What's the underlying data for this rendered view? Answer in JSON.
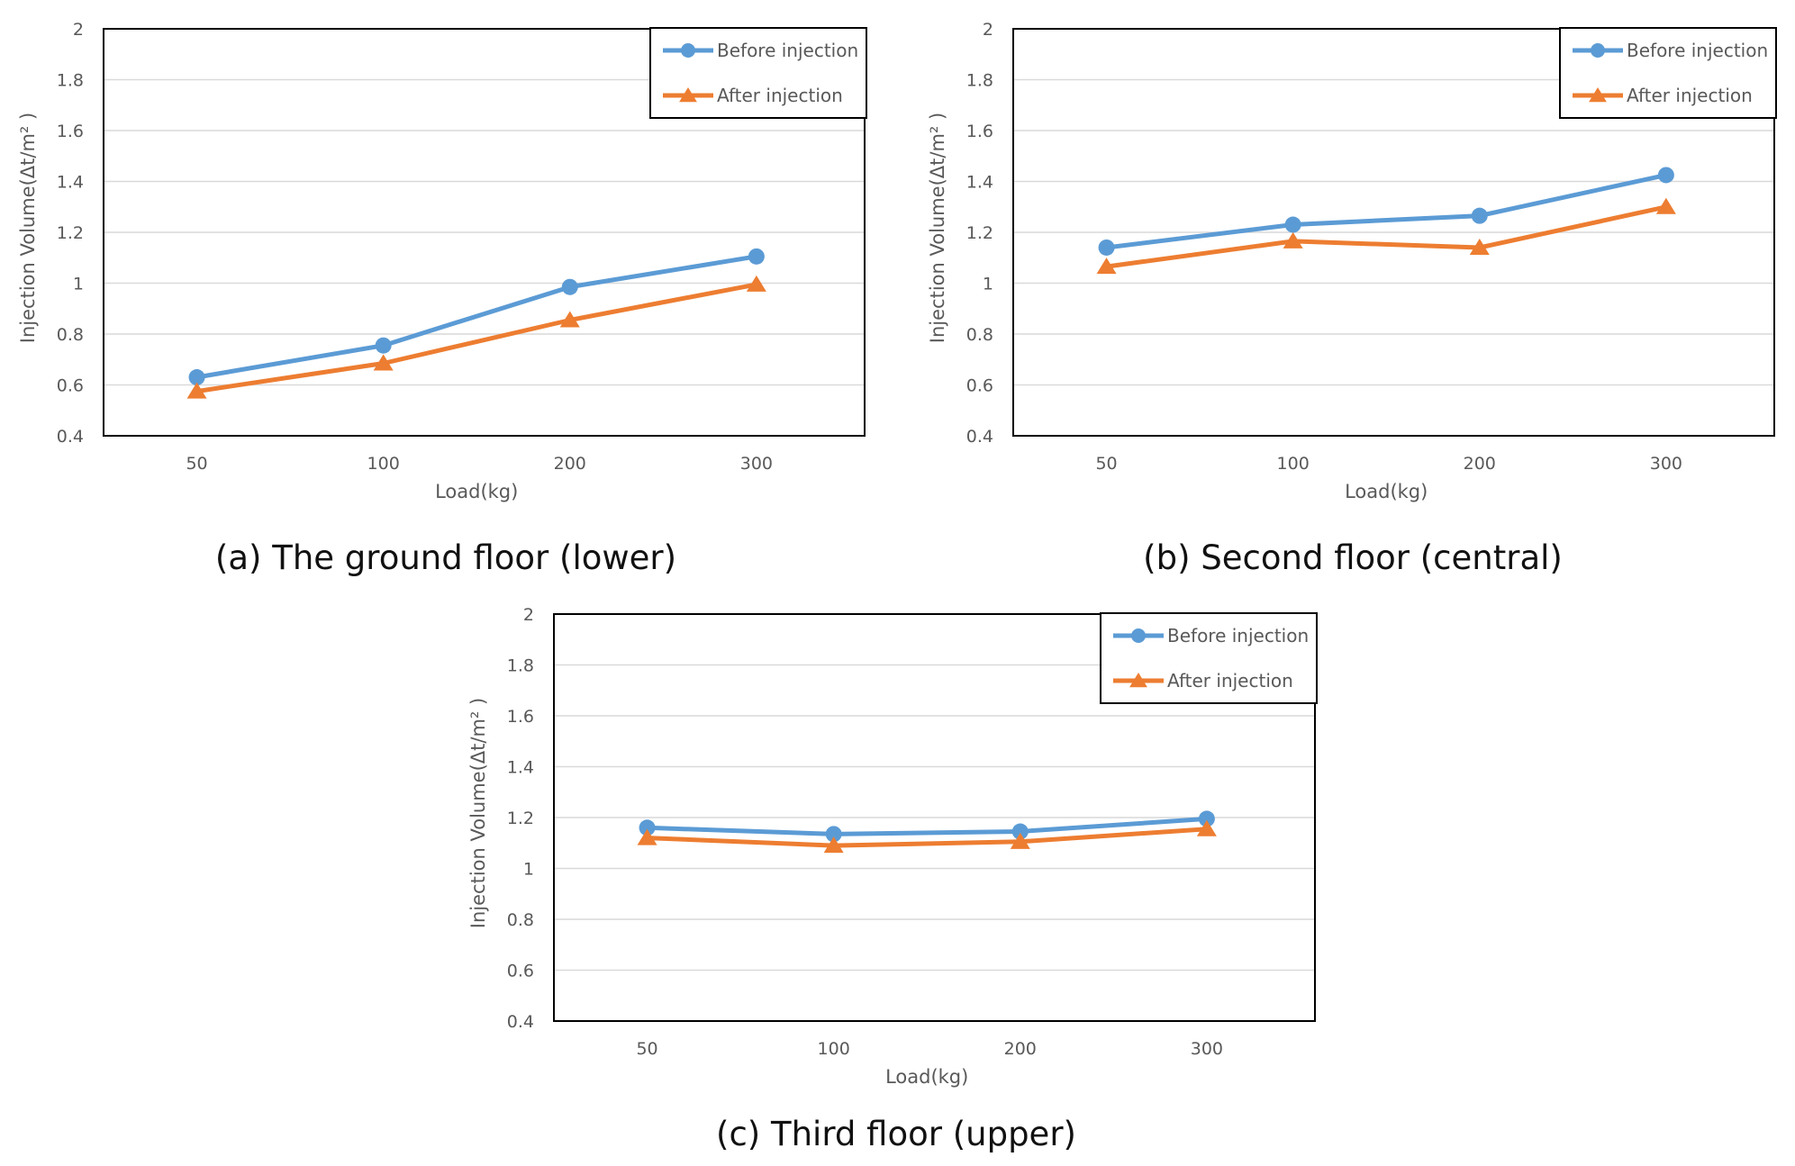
{
  "colors": {
    "before": "#5B9BD5",
    "after": "#ED7D31",
    "grid": "#D9D9D9",
    "frame": "#000000",
    "text": "#595959"
  },
  "chart_data": [
    {
      "type": "line",
      "caption": "(a) The ground floor (lower)",
      "categories": [
        "50",
        "100",
        "200",
        "300"
      ],
      "xlabel": "Load(kg)",
      "ylabel": "Injection Volume(Δt/m² )",
      "ylim": [
        0.4,
        2
      ],
      "yticks": [
        0.4,
        0.6,
        0.8,
        1,
        1.2,
        1.4,
        1.6,
        1.8,
        2
      ],
      "ytick_labels": [
        "0.4",
        "0.6",
        "0.8",
        "1",
        "1.2",
        "1.4",
        "1.6",
        "1.8",
        "2"
      ],
      "grid": true,
      "legend_position": "top-right",
      "series": [
        {
          "name": "Before injection",
          "marker": "circle",
          "values": [
            0.63,
            0.755,
            0.985,
            1.105
          ]
        },
        {
          "name": "After injection",
          "marker": "triangle",
          "values": [
            0.575,
            0.685,
            0.855,
            0.995
          ]
        }
      ]
    },
    {
      "type": "line",
      "caption": "(b) Second floor (central)",
      "categories": [
        "50",
        "100",
        "200",
        "300"
      ],
      "xlabel": "Load(kg)",
      "ylabel": "Injection Volume(Δt/m² )",
      "ylim": [
        0.4,
        2
      ],
      "yticks": [
        0.4,
        0.6,
        0.8,
        1,
        1.2,
        1.4,
        1.6,
        1.8,
        2
      ],
      "ytick_labels": [
        "0.4",
        "0.6",
        "0.8",
        "1",
        "1.2",
        "1.4",
        "1.6",
        "1.8",
        "2"
      ],
      "grid": true,
      "legend_position": "top-right",
      "series": [
        {
          "name": "Before injection",
          "marker": "circle",
          "values": [
            1.14,
            1.23,
            1.265,
            1.425
          ]
        },
        {
          "name": "After injection",
          "marker": "triangle",
          "values": [
            1.065,
            1.165,
            1.14,
            1.3
          ]
        }
      ]
    },
    {
      "type": "line",
      "caption": "(c) Third floor (upper)",
      "categories": [
        "50",
        "100",
        "200",
        "300"
      ],
      "xlabel": "Load(kg)",
      "ylabel": "Injection Volume(Δt/m² )",
      "ylim": [
        0.4,
        2
      ],
      "yticks": [
        0.4,
        0.6,
        0.8,
        1,
        1.2,
        1.4,
        1.6,
        1.8,
        2
      ],
      "ytick_labels": [
        "0.4",
        "0.6",
        "0.8",
        "1",
        "1.2",
        "1.4",
        "1.6",
        "1.8",
        "2"
      ],
      "grid": true,
      "legend_position": "top-right",
      "series": [
        {
          "name": "Before injection",
          "marker": "circle",
          "values": [
            1.16,
            1.135,
            1.145,
            1.195
          ]
        },
        {
          "name": "After injection",
          "marker": "triangle",
          "values": [
            1.12,
            1.09,
            1.105,
            1.155
          ]
        }
      ]
    }
  ]
}
